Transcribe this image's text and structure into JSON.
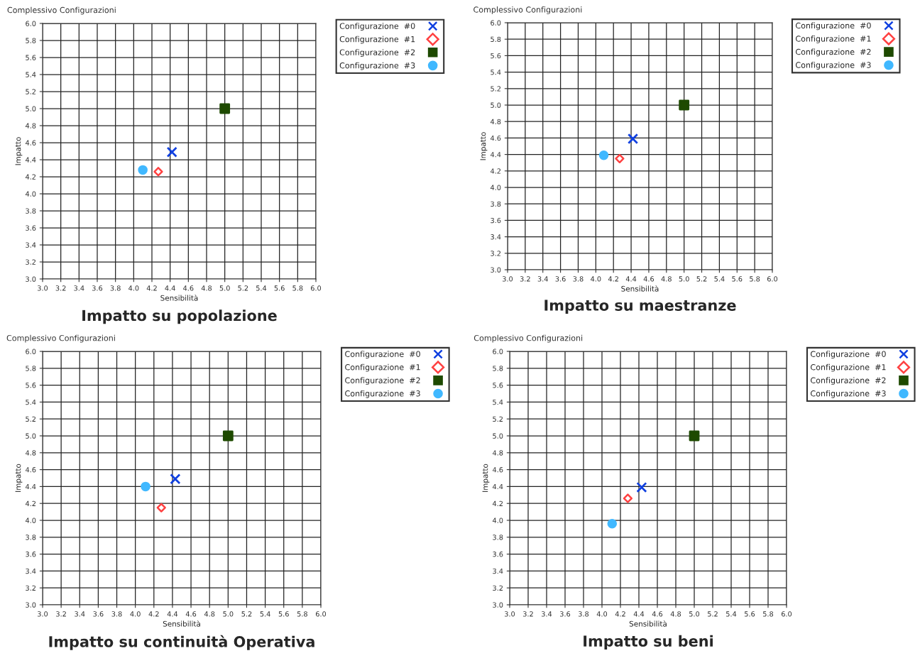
{
  "chart_data": [
    {
      "type": "scatter",
      "title": "Complessivo Configurazioni",
      "xlabel": "Sensibilità",
      "ylabel": "Impatto",
      "annotations": [
        "Impatto su popolazione"
      ],
      "xlim": [
        3.0,
        6.0
      ],
      "ylim": [
        3.0,
        6.0
      ],
      "xticks": [
        {
          "value": 3.0,
          "label": "3.0"
        },
        3.2,
        3.4,
        3.6,
        3.8,
        {
          "value": 4.0,
          "label": "4.0"
        },
        4.2,
        4.4,
        4.6,
        4.8,
        {
          "value": 5.0,
          "label": "5.0"
        },
        5.2,
        5.4,
        5.6,
        5.8,
        {
          "value": 6.0,
          "label": "6.0"
        }
      ],
      "yticks": [
        {
          "value": 3.0,
          "label": "3.0"
        },
        3.2,
        3.4,
        3.6,
        3.8,
        {
          "value": 4.0,
          "label": "4.0"
        },
        4.2,
        4.4,
        4.6,
        4.8,
        {
          "value": 5.0,
          "label": "5.0"
        },
        5.2,
        5.4,
        5.6,
        5.8,
        {
          "value": 6.0,
          "label": "6.0"
        }
      ],
      "grid": true,
      "legend": "top right",
      "series": [
        {
          "name": "Configurazione  #0",
          "color": "#1040e0",
          "marker": "cross",
          "x": [
            4.42
          ],
          "values": [
            4.49
          ]
        },
        {
          "name": "Configurazione  #1",
          "color": "#ff4040",
          "marker": "diamond",
          "x": [
            4.27
          ],
          "values": [
            4.26
          ]
        },
        {
          "name": "Configurazione  #2",
          "color": "#1e4a00",
          "marker": "square",
          "x": [
            5.0
          ],
          "values": [
            5.0
          ]
        },
        {
          "name": "Configurazione  #3",
          "color": "#40b8ff",
          "marker": "circle",
          "x": [
            4.1
          ],
          "values": [
            4.28
          ]
        }
      ]
    },
    {
      "type": "scatter",
      "title": "Complessivo Configurazioni",
      "xlabel": "Sensibilità",
      "ylabel": "Impatto",
      "annotations": [
        "Impatto su maestranze"
      ],
      "xlim": [
        3.0,
        6.0
      ],
      "ylim": [
        3.0,
        6.0
      ],
      "xticks": [
        {
          "value": 3.0,
          "label": "3.0"
        },
        3.2,
        3.4,
        3.6,
        3.8,
        {
          "value": 4.0,
          "label": "4.0"
        },
        4.2,
        4.4,
        4.6,
        4.8,
        {
          "value": 5.0,
          "label": "5.0"
        },
        5.2,
        5.4,
        5.6,
        5.8,
        {
          "value": 6.0,
          "label": "6.0"
        }
      ],
      "yticks": [
        {
          "value": 3.0,
          "label": "3.0"
        },
        3.2,
        3.4,
        3.6,
        3.8,
        {
          "value": 4.0,
          "label": "4.0"
        },
        4.2,
        4.4,
        4.6,
        4.8,
        {
          "value": 5.0,
          "label": "5.0"
        },
        5.2,
        5.4,
        5.6,
        5.8,
        {
          "value": 6.0,
          "label": "6.0"
        }
      ],
      "grid": true,
      "legend": "top right",
      "series": [
        {
          "name": "Configurazione  #0",
          "color": "#1040e0",
          "marker": "cross",
          "x": [
            4.42
          ],
          "values": [
            4.59
          ]
        },
        {
          "name": "Configurazione  #1",
          "color": "#ff4040",
          "marker": "diamond",
          "x": [
            4.27
          ],
          "values": [
            4.35
          ]
        },
        {
          "name": "Configurazione  #2",
          "color": "#1e4a00",
          "marker": "square",
          "x": [
            5.0
          ],
          "values": [
            5.0
          ]
        },
        {
          "name": "Configurazione  #3",
          "color": "#40b8ff",
          "marker": "circle",
          "x": [
            4.09
          ],
          "values": [
            4.39
          ]
        }
      ]
    },
    {
      "type": "scatter",
      "title": "Complessivo Configurazioni",
      "xlabel": "Sensibilità",
      "ylabel": "Impatto",
      "annotations": [
        "Impatto su continuità Operativa"
      ],
      "xlim": [
        3.0,
        6.0
      ],
      "ylim": [
        3.0,
        6.0
      ],
      "xticks": [
        {
          "value": 3.0,
          "label": "3.0"
        },
        3.2,
        3.4,
        3.6,
        3.8,
        {
          "value": 4.0,
          "label": "4.0"
        },
        4.2,
        4.4,
        4.6,
        4.8,
        {
          "value": 5.0,
          "label": "5.0"
        },
        5.2,
        5.4,
        5.6,
        5.8,
        {
          "value": 6.0,
          "label": "6.0"
        }
      ],
      "yticks": [
        {
          "value": 3.0,
          "label": "3.0"
        },
        3.2,
        3.4,
        3.6,
        3.8,
        {
          "value": 4.0,
          "label": "4.0"
        },
        4.2,
        4.4,
        4.6,
        4.8,
        {
          "value": 5.0,
          "label": "5.0"
        },
        5.2,
        5.4,
        5.6,
        5.8,
        {
          "value": 6.0,
          "label": "6.0"
        }
      ],
      "grid": true,
      "legend": "top right",
      "series": [
        {
          "name": "Configurazione  #0",
          "color": "#1040e0",
          "marker": "cross",
          "x": [
            4.43
          ],
          "values": [
            4.49
          ]
        },
        {
          "name": "Configurazione  #1",
          "color": "#ff4040",
          "marker": "diamond",
          "x": [
            4.28
          ],
          "values": [
            4.15
          ]
        },
        {
          "name": "Configurazione  #2",
          "color": "#1e4a00",
          "marker": "square",
          "x": [
            5.0
          ],
          "values": [
            5.0
          ]
        },
        {
          "name": "Configurazione  #3",
          "color": "#40b8ff",
          "marker": "circle",
          "x": [
            4.11
          ],
          "values": [
            4.4
          ]
        }
      ]
    },
    {
      "type": "scatter",
      "title": "Complessivo Configurazioni",
      "xlabel": "Sensibilità",
      "ylabel": "Impatto",
      "annotations": [
        "Impatto su beni"
      ],
      "xlim": [
        3.0,
        6.0
      ],
      "ylim": [
        3.0,
        6.0
      ],
      "xticks": [
        {
          "value": 3.0,
          "label": "3.0"
        },
        3.2,
        3.4,
        3.6,
        3.8,
        {
          "value": 4.0,
          "label": "4.0"
        },
        4.2,
        4.4,
        4.6,
        4.8,
        {
          "value": 5.0,
          "label": "5.0"
        },
        5.2,
        5.4,
        5.6,
        5.8,
        {
          "value": 6.0,
          "label": "6.0"
        }
      ],
      "yticks": [
        {
          "value": 3.0,
          "label": "3.0"
        },
        3.2,
        3.4,
        3.6,
        3.8,
        {
          "value": 4.0,
          "label": "4.0"
        },
        4.2,
        4.4,
        4.6,
        4.8,
        {
          "value": 5.0,
          "label": "5.0"
        },
        5.2,
        5.4,
        5.6,
        5.8,
        {
          "value": 6.0,
          "label": "6.0"
        }
      ],
      "grid": true,
      "legend": "top right",
      "series": [
        {
          "name": "Configurazione  #0",
          "color": "#1040e0",
          "marker": "cross",
          "x": [
            4.43
          ],
          "values": [
            4.39
          ]
        },
        {
          "name": "Configurazione  #1",
          "color": "#ff4040",
          "marker": "diamond",
          "x": [
            4.28
          ],
          "values": [
            4.26
          ]
        },
        {
          "name": "Configurazione  #2",
          "color": "#1e4a00",
          "marker": "square",
          "x": [
            5.0
          ],
          "values": [
            5.0
          ]
        },
        {
          "name": "Configurazione  #3",
          "color": "#40b8ff",
          "marker": "circle",
          "x": [
            4.11
          ],
          "values": [
            3.96
          ]
        }
      ]
    }
  ]
}
